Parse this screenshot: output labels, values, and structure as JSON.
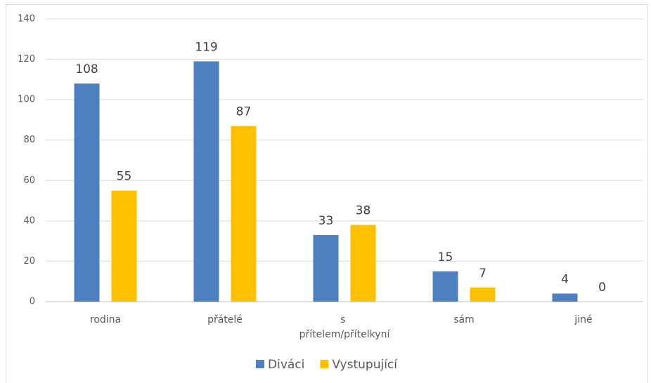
{
  "chart_data": {
    "type": "bar",
    "categories": [
      "rodina",
      "přátelé",
      "s přítelem/přítelkyní",
      "sám",
      "jiné"
    ],
    "series": [
      {
        "name": "Diváci",
        "color": "#4e7fc0",
        "values": [
          108,
          119,
          33,
          15,
          4
        ]
      },
      {
        "name": "Vystupující",
        "color": "#ffc000",
        "values": [
          55,
          87,
          38,
          7,
          0
        ]
      }
    ],
    "ylim": [
      0,
      140
    ],
    "yticks": [
      0,
      20,
      40,
      60,
      80,
      100,
      120,
      140
    ],
    "grid": true,
    "legend": "bottom"
  }
}
